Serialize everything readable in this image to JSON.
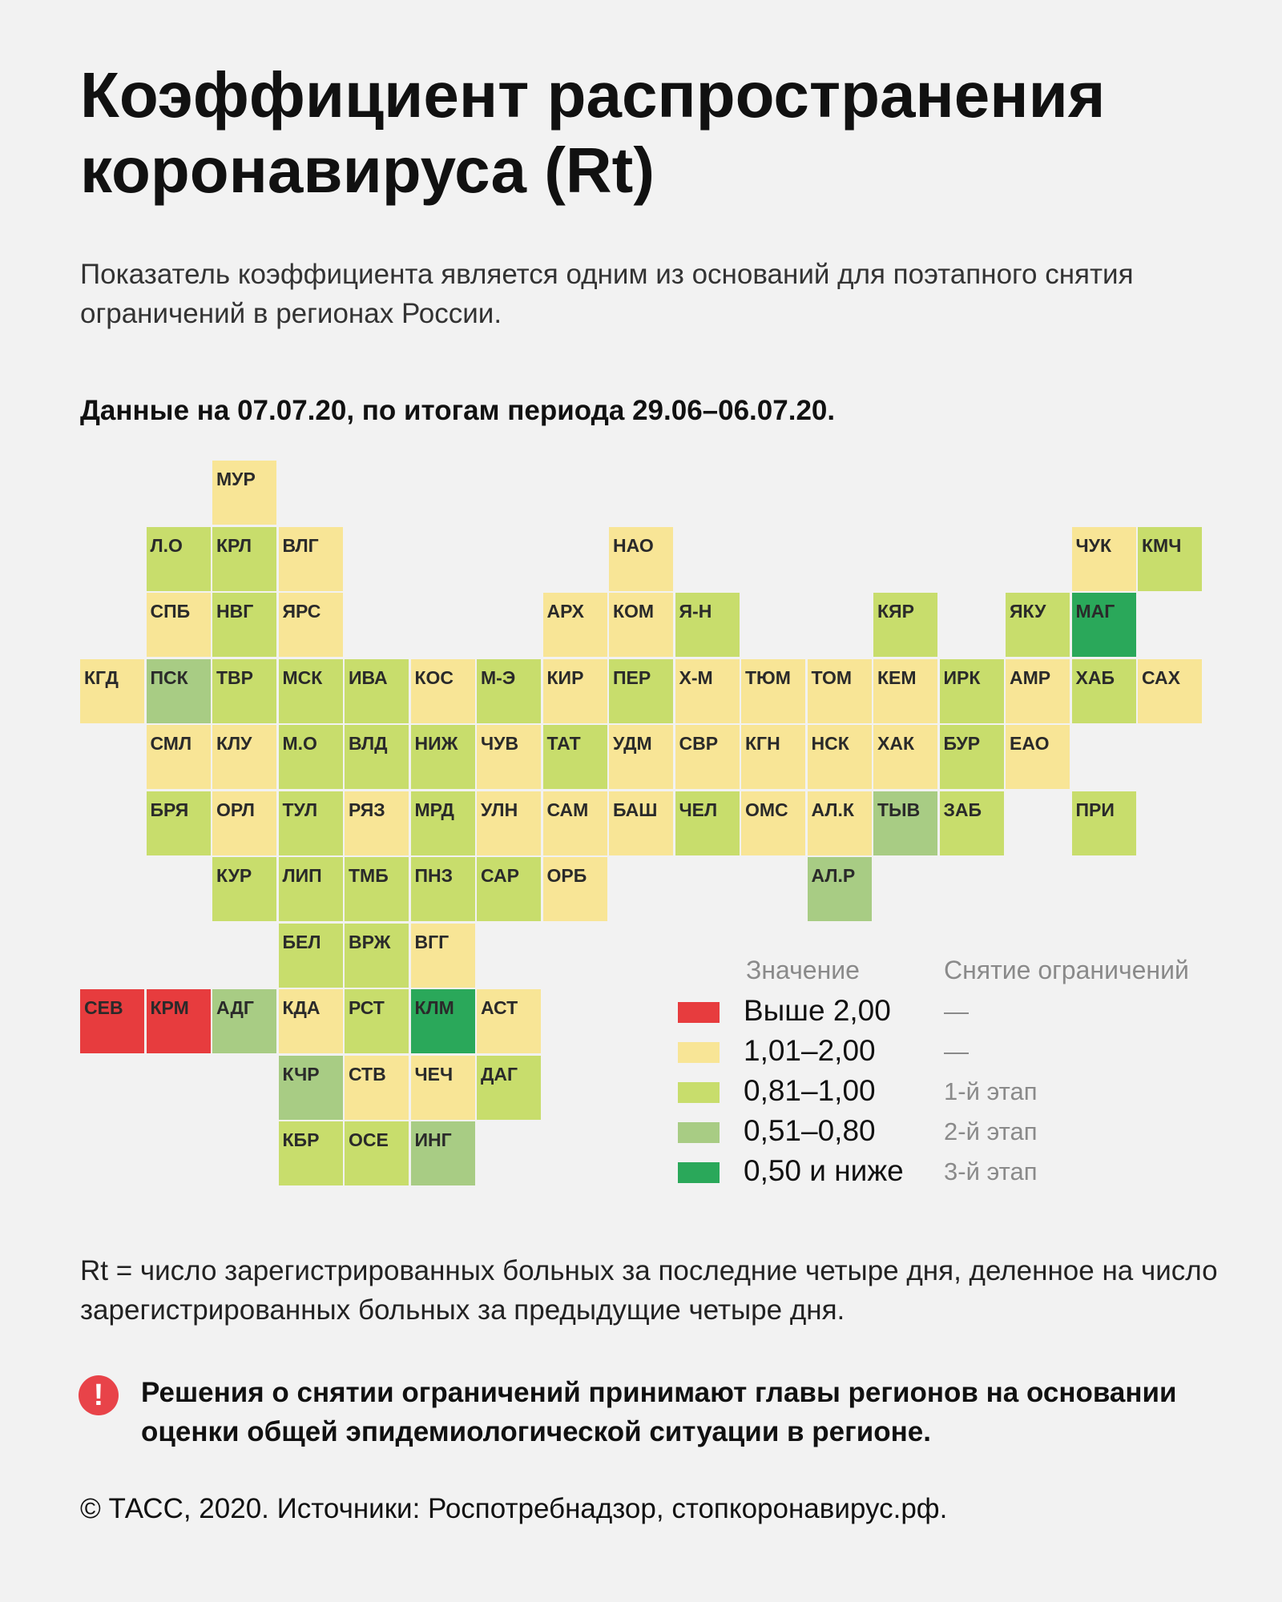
{
  "title": "Коэффициент распространения коронавируса (Rt)",
  "subtitle": "Показатель коэффициента является одним из оснований для поэтапного снятия ограничений в регионах России.",
  "dateline": "Данные на 07.07.20, по итогам периода 29.06–06.07.20.",
  "colors": {
    "above_2": "#e73c3e",
    "r1_01_2": "#f8e596",
    "r0_81_1": "#c8dd6c",
    "r0_51_0_8": "#a8cc84",
    "r0_5_below": "#2aa85a",
    "background": "#f2f2f2",
    "warning_icon": "#e84349"
  },
  "legend": {
    "value_header": "Значение",
    "restriction_header": "Снятие ограничений",
    "rows": [
      {
        "category": "above_2",
        "label": "Выше 2,00",
        "stage": "—"
      },
      {
        "category": "r1_01_2",
        "label": "1,01–2,00",
        "stage": "—"
      },
      {
        "category": "r0_81_1",
        "label": "0,81–1,00",
        "stage": "1-й этап"
      },
      {
        "category": "r0_51_0_8",
        "label": "0,51–0,80",
        "stage": "2-й этап"
      },
      {
        "category": "r0_5_below",
        "label": "0,50 и ниже",
        "stage": "3-й этап"
      }
    ]
  },
  "regions": [
    {
      "code": "МУР",
      "row": 0,
      "col": 2,
      "category": "r1_01_2"
    },
    {
      "code": "Л.О",
      "row": 1,
      "col": 1,
      "category": "r0_81_1"
    },
    {
      "code": "КРЛ",
      "row": 1,
      "col": 2,
      "category": "r0_81_1"
    },
    {
      "code": "ВЛГ",
      "row": 1,
      "col": 3,
      "category": "r1_01_2"
    },
    {
      "code": "НАО",
      "row": 1,
      "col": 8,
      "category": "r1_01_2"
    },
    {
      "code": "ЧУК",
      "row": 1,
      "col": 15,
      "category": "r1_01_2"
    },
    {
      "code": "КМЧ",
      "row": 1,
      "col": 16,
      "category": "r0_81_1"
    },
    {
      "code": "СПБ",
      "row": 2,
      "col": 1,
      "category": "r1_01_2"
    },
    {
      "code": "НВГ",
      "row": 2,
      "col": 2,
      "category": "r0_81_1"
    },
    {
      "code": "ЯРС",
      "row": 2,
      "col": 3,
      "category": "r1_01_2"
    },
    {
      "code": "АРХ",
      "row": 2,
      "col": 7,
      "category": "r1_01_2"
    },
    {
      "code": "КОМ",
      "row": 2,
      "col": 8,
      "category": "r1_01_2"
    },
    {
      "code": "Я-Н",
      "row": 2,
      "col": 9,
      "category": "r0_81_1"
    },
    {
      "code": "КЯР",
      "row": 2,
      "col": 12,
      "category": "r0_81_1"
    },
    {
      "code": "ЯКУ",
      "row": 2,
      "col": 14,
      "category": "r0_81_1"
    },
    {
      "code": "МАГ",
      "row": 2,
      "col": 15,
      "category": "r0_5_below"
    },
    {
      "code": "КГД",
      "row": 3,
      "col": 0,
      "category": "r1_01_2"
    },
    {
      "code": "ПСК",
      "row": 3,
      "col": 1,
      "category": "r0_51_0_8"
    },
    {
      "code": "ТВР",
      "row": 3,
      "col": 2,
      "category": "r0_81_1"
    },
    {
      "code": "МСК",
      "row": 3,
      "col": 3,
      "category": "r0_81_1"
    },
    {
      "code": "ИВА",
      "row": 3,
      "col": 4,
      "category": "r0_81_1"
    },
    {
      "code": "КОС",
      "row": 3,
      "col": 5,
      "category": "r1_01_2"
    },
    {
      "code": "М-Э",
      "row": 3,
      "col": 6,
      "category": "r0_81_1"
    },
    {
      "code": "КИР",
      "row": 3,
      "col": 7,
      "category": "r1_01_2"
    },
    {
      "code": "ПЕР",
      "row": 3,
      "col": 8,
      "category": "r0_81_1"
    },
    {
      "code": "Х-М",
      "row": 3,
      "col": 9,
      "category": "r1_01_2"
    },
    {
      "code": "ТЮМ",
      "row": 3,
      "col": 10,
      "category": "r1_01_2"
    },
    {
      "code": "ТОМ",
      "row": 3,
      "col": 11,
      "category": "r1_01_2"
    },
    {
      "code": "КЕМ",
      "row": 3,
      "col": 12,
      "category": "r1_01_2"
    },
    {
      "code": "ИРК",
      "row": 3,
      "col": 13,
      "category": "r0_81_1"
    },
    {
      "code": "АМР",
      "row": 3,
      "col": 14,
      "category": "r1_01_2"
    },
    {
      "code": "ХАБ",
      "row": 3,
      "col": 15,
      "category": "r0_81_1"
    },
    {
      "code": "САХ",
      "row": 3,
      "col": 16,
      "category": "r1_01_2"
    },
    {
      "code": "СМЛ",
      "row": 4,
      "col": 1,
      "category": "r1_01_2"
    },
    {
      "code": "КЛУ",
      "row": 4,
      "col": 2,
      "category": "r1_01_2"
    },
    {
      "code": "М.О",
      "row": 4,
      "col": 3,
      "category": "r0_81_1"
    },
    {
      "code": "ВЛД",
      "row": 4,
      "col": 4,
      "category": "r0_81_1"
    },
    {
      "code": "НИЖ",
      "row": 4,
      "col": 5,
      "category": "r0_81_1"
    },
    {
      "code": "ЧУВ",
      "row": 4,
      "col": 6,
      "category": "r1_01_2"
    },
    {
      "code": "ТАТ",
      "row": 4,
      "col": 7,
      "category": "r0_81_1"
    },
    {
      "code": "УДМ",
      "row": 4,
      "col": 8,
      "category": "r1_01_2"
    },
    {
      "code": "СВР",
      "row": 4,
      "col": 9,
      "category": "r1_01_2"
    },
    {
      "code": "КГН",
      "row": 4,
      "col": 10,
      "category": "r1_01_2"
    },
    {
      "code": "НСК",
      "row": 4,
      "col": 11,
      "category": "r1_01_2"
    },
    {
      "code": "ХАК",
      "row": 4,
      "col": 12,
      "category": "r1_01_2"
    },
    {
      "code": "БУР",
      "row": 4,
      "col": 13,
      "category": "r0_81_1"
    },
    {
      "code": "ЕАО",
      "row": 4,
      "col": 14,
      "category": "r1_01_2"
    },
    {
      "code": "БРЯ",
      "row": 5,
      "col": 1,
      "category": "r0_81_1"
    },
    {
      "code": "ОРЛ",
      "row": 5,
      "col": 2,
      "category": "r1_01_2"
    },
    {
      "code": "ТУЛ",
      "row": 5,
      "col": 3,
      "category": "r0_81_1"
    },
    {
      "code": "РЯЗ",
      "row": 5,
      "col": 4,
      "category": "r1_01_2"
    },
    {
      "code": "МРД",
      "row": 5,
      "col": 5,
      "category": "r0_81_1"
    },
    {
      "code": "УЛН",
      "row": 5,
      "col": 6,
      "category": "r1_01_2"
    },
    {
      "code": "САМ",
      "row": 5,
      "col": 7,
      "category": "r1_01_2"
    },
    {
      "code": "БАШ",
      "row": 5,
      "col": 8,
      "category": "r1_01_2"
    },
    {
      "code": "ЧЕЛ",
      "row": 5,
      "col": 9,
      "category": "r0_81_1"
    },
    {
      "code": "ОМС",
      "row": 5,
      "col": 10,
      "category": "r1_01_2"
    },
    {
      "code": "АЛ.К",
      "row": 5,
      "col": 11,
      "category": "r1_01_2"
    },
    {
      "code": "ТЫВ",
      "row": 5,
      "col": 12,
      "category": "r0_51_0_8"
    },
    {
      "code": "ЗАБ",
      "row": 5,
      "col": 13,
      "category": "r0_81_1"
    },
    {
      "code": "ПРИ",
      "row": 5,
      "col": 15,
      "category": "r0_81_1"
    },
    {
      "code": "КУР",
      "row": 6,
      "col": 2,
      "category": "r0_81_1"
    },
    {
      "code": "ЛИП",
      "row": 6,
      "col": 3,
      "category": "r0_81_1"
    },
    {
      "code": "ТМБ",
      "row": 6,
      "col": 4,
      "category": "r0_81_1"
    },
    {
      "code": "ПНЗ",
      "row": 6,
      "col": 5,
      "category": "r0_81_1"
    },
    {
      "code": "САР",
      "row": 6,
      "col": 6,
      "category": "r0_81_1"
    },
    {
      "code": "ОРБ",
      "row": 6,
      "col": 7,
      "category": "r1_01_2"
    },
    {
      "code": "АЛ.Р",
      "row": 6,
      "col": 11,
      "category": "r0_51_0_8"
    },
    {
      "code": "БЕЛ",
      "row": 7,
      "col": 3,
      "category": "r0_81_1"
    },
    {
      "code": "ВРЖ",
      "row": 7,
      "col": 4,
      "category": "r0_81_1"
    },
    {
      "code": "ВГГ",
      "row": 7,
      "col": 5,
      "category": "r1_01_2"
    },
    {
      "code": "СЕВ",
      "row": 8,
      "col": 0,
      "category": "above_2"
    },
    {
      "code": "КРМ",
      "row": 8,
      "col": 1,
      "category": "above_2"
    },
    {
      "code": "АДГ",
      "row": 8,
      "col": 2,
      "category": "r0_51_0_8"
    },
    {
      "code": "КДА",
      "row": 8,
      "col": 3,
      "category": "r1_01_2"
    },
    {
      "code": "РСТ",
      "row": 8,
      "col": 4,
      "category": "r0_81_1"
    },
    {
      "code": "КЛМ",
      "row": 8,
      "col": 5,
      "category": "r0_5_below"
    },
    {
      "code": "АСТ",
      "row": 8,
      "col": 6,
      "category": "r1_01_2"
    },
    {
      "code": "КЧР",
      "row": 9,
      "col": 3,
      "category": "r0_51_0_8"
    },
    {
      "code": "СТВ",
      "row": 9,
      "col": 4,
      "category": "r1_01_2"
    },
    {
      "code": "ЧЕЧ",
      "row": 9,
      "col": 5,
      "category": "r1_01_2"
    },
    {
      "code": "ДАГ",
      "row": 9,
      "col": 6,
      "category": "r0_81_1"
    },
    {
      "code": "КБР",
      "row": 10,
      "col": 3,
      "category": "r0_81_1"
    },
    {
      "code": "ОСЕ",
      "row": 10,
      "col": 4,
      "category": "r0_81_1"
    },
    {
      "code": "ИНГ",
      "row": 10,
      "col": 5,
      "category": "r0_51_0_8"
    }
  ],
  "formula": "Rt = число зарегистрированных больных за последние четыре дня, деленное на число зарегистрированных больных за предыдущие четыре дня.",
  "warning_icon_glyph": "!",
  "warning": "Решения о снятии ограничений принимают главы регионов на основании оценки общей эпидемиологической ситуации в регионе.",
  "footer": "© ТАСС, 2020. Источники: Роспотребнадзор, стопкоронавирус.рф."
}
